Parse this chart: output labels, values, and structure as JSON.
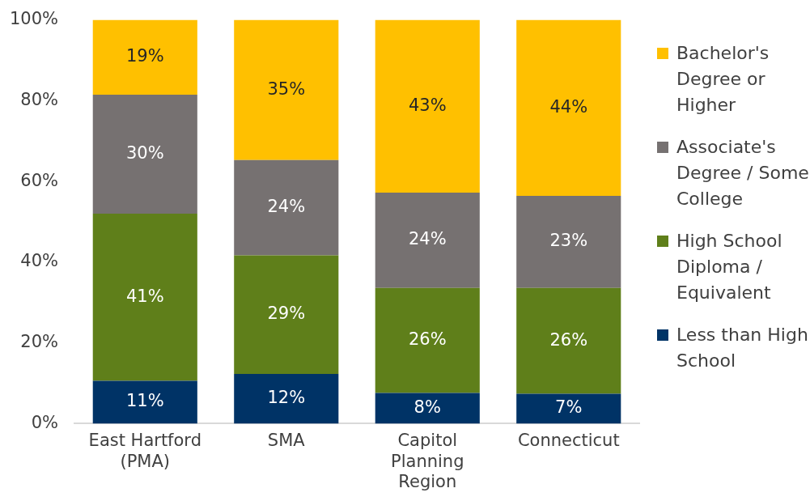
{
  "chart_data": {
    "type": "bar",
    "stacked": true,
    "categories": [
      "East Hartford (PMA)",
      "SMA",
      "Capitol Planning Region",
      "Connecticut"
    ],
    "series": [
      {
        "name": "Less than High School",
        "color": "#003366",
        "values": [
          10.6,
          12.3,
          7.6,
          7.4
        ],
        "value_labels": [
          "11%",
          "12%",
          "8%",
          "7%"
        ]
      },
      {
        "name": "High School Diploma / Equivalent",
        "color": "#5f7f1a",
        "values": [
          41.4,
          29.4,
          26.0,
          26.2
        ],
        "value_labels": [
          "41%",
          "29%",
          "26%",
          "26%"
        ]
      },
      {
        "name": "Associate's Degree / Some College",
        "color": "#767171",
        "values": [
          29.5,
          23.6,
          23.6,
          22.8
        ],
        "value_labels": [
          "30%",
          "24%",
          "24%",
          "23%"
        ]
      },
      {
        "name": "Bachelor's Degree or Higher",
        "color": "#ffc000",
        "values": [
          18.5,
          34.7,
          42.8,
          43.6
        ],
        "value_labels": [
          "19%",
          "35%",
          "43%",
          "44%"
        ]
      }
    ],
    "ylim": [
      0,
      100
    ],
    "yticks": [
      {
        "value": 0,
        "label": "0%"
      },
      {
        "value": 20,
        "label": "20%"
      },
      {
        "value": 40,
        "label": "40%"
      },
      {
        "value": 60,
        "label": "60%"
      },
      {
        "value": 80,
        "label": "80%"
      },
      {
        "value": 100,
        "label": "100%"
      }
    ],
    "grid": false,
    "legend": "right"
  }
}
